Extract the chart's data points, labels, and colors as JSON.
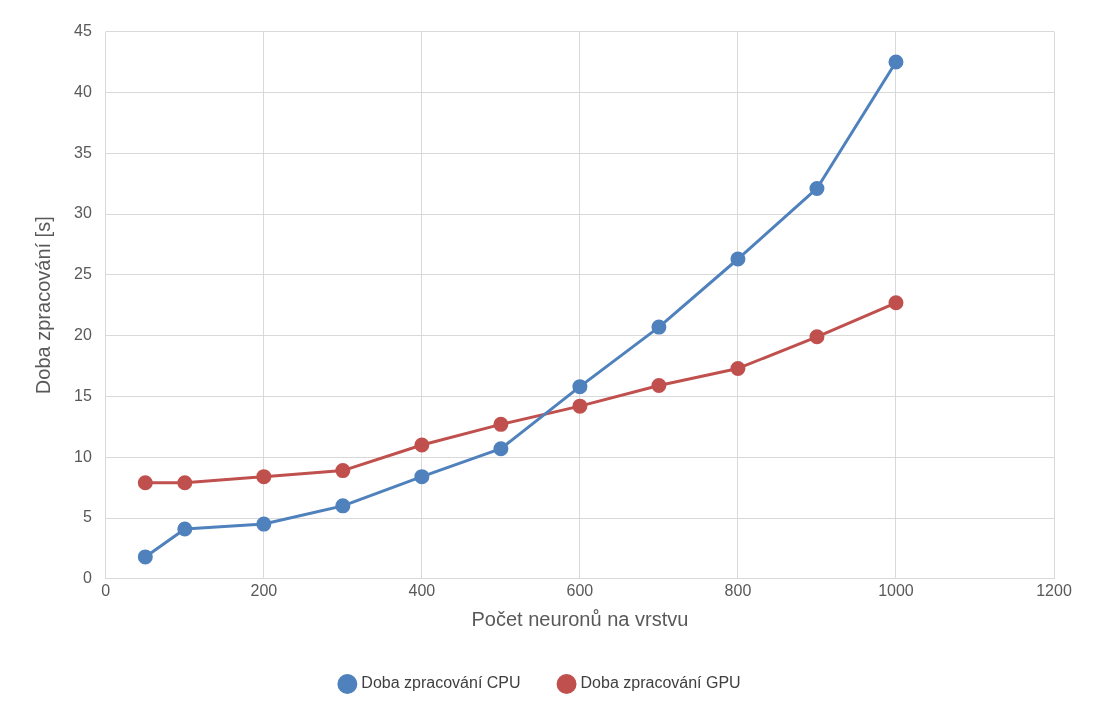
{
  "chart_data": {
    "type": "line",
    "xlabel": "Počet neuronů na vrstvu",
    "ylabel": "Doba zpracování [s]",
    "x": [
      50,
      100,
      200,
      300,
      400,
      500,
      600,
      700,
      800,
      900,
      1000
    ],
    "series": [
      {
        "name": "Doba zpracování CPU",
        "color": "#4f81bd",
        "values": [
          1.8,
          4.1,
          4.5,
          6.0,
          8.4,
          10.7,
          15.8,
          20.7,
          26.3,
          32.1,
          42.5
        ]
      },
      {
        "name": "Doba zpracování GPU",
        "color": "#c0504d",
        "values": [
          7.9,
          7.9,
          8.4,
          8.9,
          11.0,
          12.7,
          14.2,
          15.9,
          17.3,
          19.9,
          22.7
        ]
      }
    ],
    "xlim": [
      0,
      1200
    ],
    "xticks": [
      0,
      200,
      400,
      600,
      800,
      1000,
      1200
    ],
    "ylim": [
      0,
      45
    ],
    "yticks": [
      0,
      5,
      10,
      15,
      20,
      25,
      30,
      35,
      40,
      45
    ],
    "grid": true,
    "legend": "bottom",
    "marker": "circle",
    "line_style": "solid"
  }
}
